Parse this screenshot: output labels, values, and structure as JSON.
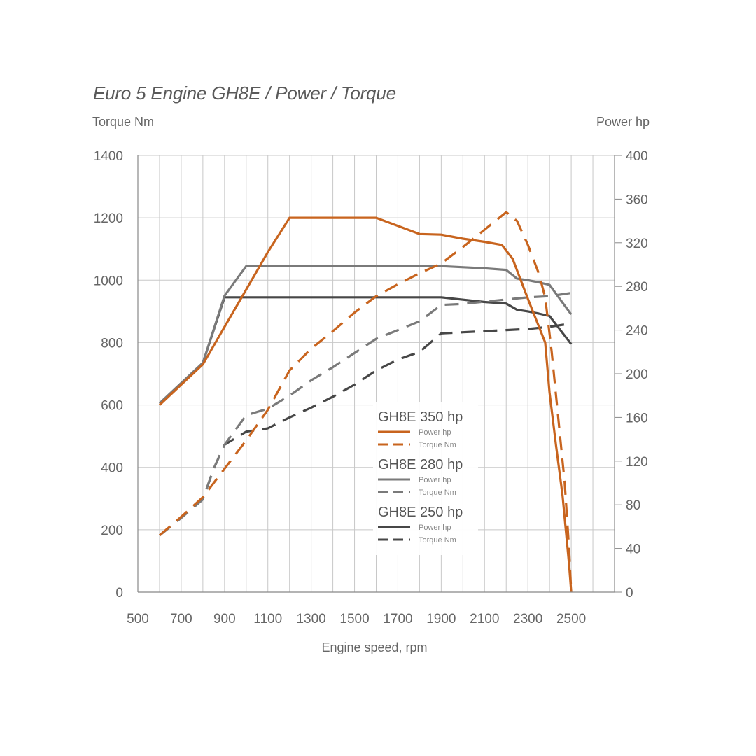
{
  "title": "Euro 5 Engine GH8E / Power / Torque",
  "colors": {
    "orange": "#c8641e",
    "gray": "#7a7a7a",
    "dark": "#474747",
    "grid": "#c8c8c8",
    "axis": "#888888"
  },
  "chart_data": {
    "type": "line",
    "title": "Euro 5 Engine GH8E / Power / Torque",
    "xlabel": "Engine speed, rpm",
    "ylabel_left": "Torque Nm",
    "ylabel_right": "Power hp",
    "xlim": [
      500,
      2700
    ],
    "ylim_left": [
      0,
      1400
    ],
    "ylim_right": [
      0,
      400
    ],
    "x_ticks": [
      500,
      700,
      900,
      1100,
      1300,
      1500,
      1700,
      1900,
      2100,
      2300,
      2500
    ],
    "y_left_ticks": [
      0,
      200,
      400,
      600,
      800,
      1000,
      1200,
      1400
    ],
    "y_right_ticks": [
      0,
      40,
      80,
      120,
      160,
      200,
      240,
      280,
      320,
      360,
      400
    ],
    "grid": true,
    "legend_position": "center",
    "legend_groups": [
      {
        "title": "GH8E 350 hp",
        "power_label": "Power hp",
        "torque_label": "Torque Nm",
        "color_key": "orange"
      },
      {
        "title": "GH8E 280 hp",
        "power_label": "Power hp",
        "torque_label": "Torque Nm",
        "color_key": "gray"
      },
      {
        "title": "GH8E 250 hp",
        "power_label": "Power hp",
        "torque_label": "Torque Nm",
        "color_key": "dark"
      }
    ],
    "series": [
      {
        "name": "Power hp",
        "engine": "GH8E 350 hp",
        "axis": "left",
        "dash": false,
        "color_key": "orange",
        "x": [
          600,
          800,
          900,
          1000,
          1100,
          1200,
          1400,
          1600,
          1800,
          1900,
          2000,
          2100,
          2180,
          2230,
          2300,
          2380,
          2400,
          2430,
          2460,
          2490,
          2500
        ],
        "y": [
          600,
          730,
          850,
          970,
          1090,
          1200,
          1200,
          1200,
          1148,
          1146,
          1133,
          1123,
          1113,
          1068,
          940,
          800,
          640,
          470,
          310,
          90,
          0
        ]
      },
      {
        "name": "Torque Nm",
        "engine": "GH8E 350 hp",
        "axis": "right",
        "dash": true,
        "color_key": "orange",
        "x": [
          600,
          700,
          800,
          900,
          1000,
          1100,
          1200,
          1300,
          1400,
          1500,
          1600,
          1700,
          1800,
          1900,
          2000,
          2100,
          2200,
          2250,
          2300,
          2350,
          2380,
          2410,
          2440,
          2470,
          2490,
          2500
        ],
        "y": [
          52,
          69,
          87,
          113,
          139,
          167,
          203,
          223,
          239,
          256,
          271,
          282,
          292,
          301,
          316,
          332,
          348,
          340,
          318,
          292,
          270,
          220,
          160,
          100,
          40,
          0
        ]
      },
      {
        "name": "Power hp",
        "engine": "GH8E 280 hp",
        "axis": "left",
        "dash": false,
        "color_key": "gray",
        "x": [
          600,
          700,
          800,
          900,
          1000,
          1100,
          1300,
          1500,
          1700,
          1900,
          2100,
          2200,
          2250,
          2300,
          2350,
          2400,
          2500
        ],
        "y": [
          605,
          670,
          735,
          950,
          1045,
          1045,
          1045,
          1045,
          1045,
          1045,
          1038,
          1033,
          1005,
          1000,
          993,
          985,
          890
        ]
      },
      {
        "name": "Torque Nm",
        "engine": "GH8E 280 hp",
        "axis": "right",
        "dash": true,
        "color_key": "gray",
        "x": [
          600,
          700,
          800,
          850,
          900,
          1000,
          1100,
          1200,
          1300,
          1400,
          1500,
          1600,
          1700,
          1800,
          1900,
          2000,
          2100,
          2200,
          2300,
          2400,
          2500
        ],
        "y": [
          52,
          68,
          85,
          113,
          135,
          162,
          168,
          180,
          194,
          206,
          219,
          232,
          240,
          248,
          263,
          264,
          266,
          268,
          270,
          271,
          274
        ]
      },
      {
        "name": "Power hp",
        "engine": "GH8E 250 hp",
        "axis": "left",
        "dash": false,
        "color_key": "dark",
        "x": [
          600,
          700,
          800,
          900,
          1000,
          1100,
          1300,
          1500,
          1700,
          1900,
          2100,
          2200,
          2250,
          2300,
          2350,
          2400,
          2500
        ],
        "y": [
          605,
          670,
          735,
          945,
          945,
          945,
          945,
          945,
          945,
          945,
          930,
          925,
          905,
          900,
          893,
          885,
          795
        ]
      },
      {
        "name": "Torque Nm",
        "engine": "GH8E 250 hp",
        "axis": "right",
        "dash": true,
        "color_key": "dark",
        "x": [
          600,
          700,
          800,
          850,
          900,
          1000,
          1100,
          1200,
          1300,
          1400,
          1500,
          1600,
          1700,
          1800,
          1900,
          2000,
          2100,
          2200,
          2300,
          2400,
          2500
        ],
        "y": [
          52,
          68,
          85,
          113,
          135,
          147,
          150,
          160,
          169,
          179,
          190,
          203,
          213,
          220,
          237,
          238,
          239,
          240,
          241,
          243,
          246
        ]
      }
    ]
  }
}
